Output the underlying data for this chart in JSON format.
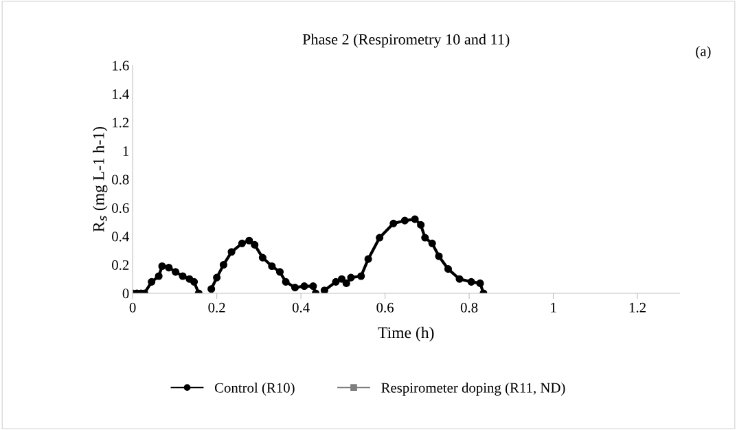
{
  "chart_data": {
    "type": "line",
    "title": "Phase 2 (Respirometry 10 and 11)",
    "xlabel": "Time (h)",
    "ylabel": "R$_{s}$ (mg L-1 h-1)",
    "annotations": [
      "(a)"
    ],
    "xlim": [
      0,
      1.3
    ],
    "xticks": [
      0,
      0.2,
      0.4,
      0.6,
      0.8,
      1,
      1.2
    ],
    "ylim": [
      0,
      1.6
    ],
    "yticks": [
      0,
      0.2,
      0.4,
      0.6,
      0.8,
      1,
      1.2,
      1.4,
      1.6
    ],
    "grid": false,
    "legend": "bottom",
    "x": [
      0,
      0.01,
      0.02,
      0.028,
      0.045,
      0.062,
      0.07,
      0.086,
      0.102,
      0.119,
      0.135,
      0.146,
      0.157,
      0.17,
      0.187,
      0.2,
      0.216,
      0.235,
      0.26,
      0.277,
      0.29,
      0.309,
      0.331,
      0.35,
      0.364,
      0.386,
      0.408,
      0.429,
      0.435,
      0.445,
      0.456,
      0.483,
      0.497,
      0.508,
      0.519,
      0.543,
      0.56,
      0.587,
      0.62,
      0.647,
      0.671,
      0.685,
      0.695,
      0.712,
      0.728,
      0.75,
      0.777,
      0.805,
      0.826,
      0.834
    ],
    "series": [
      {
        "name": "Control (R10)",
        "color": "#000000",
        "marker": "circle",
        "values": [
          0,
          0,
          0,
          0,
          0.08,
          0.12,
          0.19,
          0.18,
          0.15,
          0.12,
          0.1,
          0.08,
          0,
          null,
          0.03,
          0.11,
          0.2,
          0.29,
          0.35,
          0.37,
          0.34,
          0.25,
          0.19,
          0.15,
          0.08,
          0.04,
          0.05,
          0.05,
          0,
          null,
          0.02,
          0.08,
          0.1,
          0.07,
          0.11,
          0.12,
          0.24,
          0.39,
          0.49,
          0.51,
          0.52,
          0.48,
          0.39,
          0.35,
          0.26,
          0.17,
          0.1,
          0.08,
          0.07,
          0
        ]
      },
      {
        "name": "Respirometer doping (R11, ND)",
        "color": "#7f7f7f",
        "marker": "square",
        "values": [
          null,
          null,
          null,
          null,
          null,
          null,
          null,
          null,
          null,
          null,
          null,
          null,
          null,
          null,
          null,
          null,
          null,
          null,
          null,
          null,
          null,
          null,
          null,
          null,
          null,
          null,
          null,
          null,
          null,
          null,
          null,
          null,
          null,
          null,
          null,
          null,
          null,
          null,
          null,
          null,
          null,
          null,
          null,
          null,
          null,
          null,
          null,
          null,
          null,
          null
        ]
      }
    ]
  }
}
